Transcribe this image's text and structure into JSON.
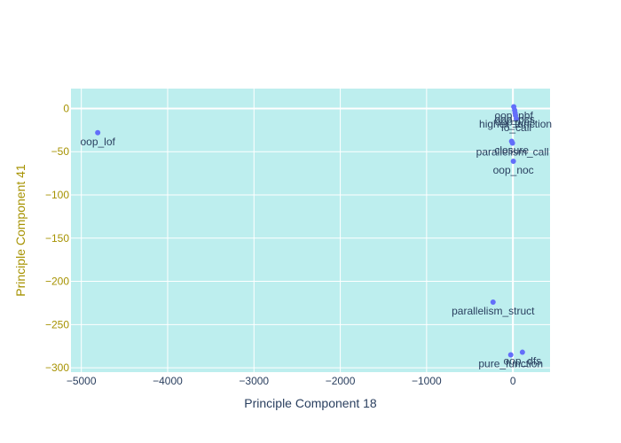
{
  "chart_data": {
    "type": "scatter",
    "title": "",
    "xlabel": "Principle Component 18",
    "ylabel": "Principle Component 41",
    "xlim": [
      -5120,
      430
    ],
    "ylim": [
      -305,
      23
    ],
    "xticks": [
      -5000,
      -4000,
      -3000,
      -2000,
      -1000,
      0
    ],
    "xtick_labels": [
      "−5000",
      "−4000",
      "−3000",
      "−2000",
      "−1000",
      "0"
    ],
    "yticks": [
      0,
      -50,
      -100,
      -150,
      -200,
      -250,
      -300
    ],
    "ytick_labels": [
      "0",
      "−50",
      "−100",
      "−150",
      "−200",
      "−250",
      "−300"
    ],
    "grid": true,
    "colors": {
      "plot_background": "#bdeeee",
      "grid": "#ffffff",
      "marker": "#636efa",
      "x_axis_text": "#2a3f5f",
      "y_axis_text": "#a69200"
    },
    "points": [
      {
        "label": "oop_lof",
        "x": -4810,
        "y": -28
      },
      {
        "label": "oop_pbf",
        "x": 10,
        "y": 2
      },
      {
        "label": "oop_pcs",
        "x": 20,
        "y": -2
      },
      {
        "label": "oop_ves",
        "x": 25,
        "y": -5
      },
      {
        "label": "higher_function",
        "x": 30,
        "y": -8
      },
      {
        "label": "io_call",
        "x": 40,
        "y": -12
      },
      {
        "label": "closure",
        "x": -15,
        "y": -38
      },
      {
        "label": "parallelism_call",
        "x": -5,
        "y": -40
      },
      {
        "label": "oop_noc",
        "x": 5,
        "y": -61
      },
      {
        "label": "parallelism_struct",
        "x": -230,
        "y": -224
      },
      {
        "label": "oop_dfs",
        "x": 110,
        "y": -282
      },
      {
        "label": "pure_function",
        "x": -25,
        "y": -285
      }
    ]
  }
}
